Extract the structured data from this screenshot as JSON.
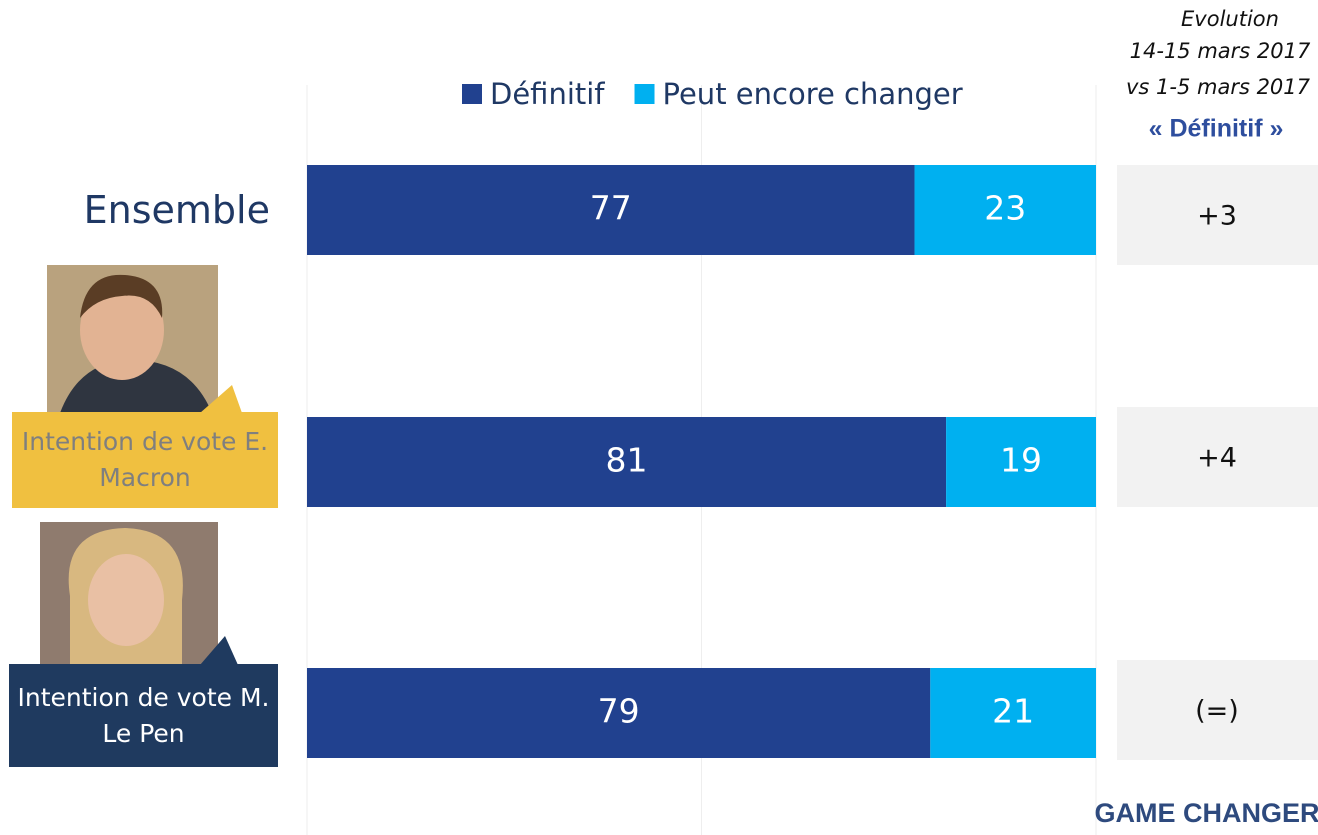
{
  "chart_data": {
    "type": "stacked-bar-horizontal",
    "categories": [
      "Ensemble",
      "Intention de vote E. Macron",
      "Intention de vote M. Le Pen"
    ],
    "series": [
      {
        "name": "Définitif",
        "color": "#21418f",
        "values": [
          77,
          81,
          79
        ]
      },
      {
        "name": "Peut encore changer",
        "color": "#00b0f0",
        "values": [
          23,
          19,
          21
        ]
      }
    ],
    "xlim": [
      0,
      100
    ],
    "xticks": [
      0,
      50,
      100
    ],
    "grid": true,
    "legend": "top"
  },
  "evolution": {
    "header": [
      "Evolution",
      "14-15 mars 2017",
      "vs 1-5 mars 2017"
    ],
    "subheader": "« Définitif »",
    "values": [
      "+3",
      "+4",
      "(=)"
    ]
  },
  "logo": "GAME CHANGERS"
}
